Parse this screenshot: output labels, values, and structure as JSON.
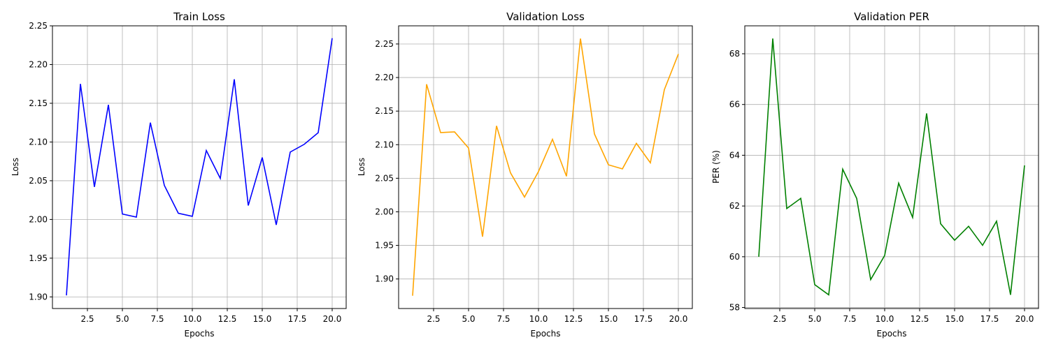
{
  "chart_data": [
    {
      "type": "line",
      "title": "Train Loss",
      "xlabel": "Epochs",
      "ylabel": "Loss",
      "xlim": [
        0,
        21
      ],
      "ylim": [
        1.885,
        2.25
      ],
      "xticks": [
        2.5,
        5.0,
        7.5,
        10.0,
        12.5,
        15.0,
        17.5,
        20.0
      ],
      "xtick_labels": [
        "2.5",
        "5.0",
        "7.5",
        "10.0",
        "12.5",
        "15.0",
        "17.5",
        "20.0"
      ],
      "yticks": [
        1.9,
        1.95,
        2.0,
        2.05,
        2.1,
        2.15,
        2.2,
        2.25
      ],
      "ytick_labels": [
        "1.90",
        "1.95",
        "2.00",
        "2.05",
        "2.10",
        "2.15",
        "2.20",
        "2.25"
      ],
      "grid": true,
      "color": "#0000ff",
      "x": [
        1,
        2,
        3,
        4,
        5,
        6,
        7,
        8,
        9,
        10,
        11,
        12,
        13,
        14,
        15,
        16,
        17,
        18,
        19,
        20
      ],
      "values": [
        1.902,
        2.175,
        2.042,
        2.148,
        2.007,
        2.003,
        2.125,
        2.044,
        2.008,
        2.004,
        2.089,
        2.053,
        2.181,
        2.018,
        2.08,
        1.993,
        2.087,
        2.097,
        2.112,
        2.234
      ]
    },
    {
      "type": "line",
      "title": "Validation Loss",
      "xlabel": "Epochs",
      "ylabel": "Loss",
      "xlim": [
        0,
        21
      ],
      "ylim": [
        1.856,
        2.277
      ],
      "xticks": [
        2.5,
        5.0,
        7.5,
        10.0,
        12.5,
        15.0,
        17.5,
        20.0
      ],
      "xtick_labels": [
        "2.5",
        "5.0",
        "7.5",
        "10.0",
        "12.5",
        "15.0",
        "17.5",
        "20.0"
      ],
      "yticks": [
        1.9,
        1.95,
        2.0,
        2.05,
        2.1,
        2.15,
        2.2,
        2.25
      ],
      "ytick_labels": [
        "1.90",
        "1.95",
        "2.00",
        "2.05",
        "2.10",
        "2.15",
        "2.20",
        "2.25"
      ],
      "grid": true,
      "color": "#ffa500",
      "x": [
        1,
        2,
        3,
        4,
        5,
        6,
        7,
        8,
        9,
        10,
        11,
        12,
        13,
        14,
        15,
        16,
        17,
        18,
        19,
        20
      ],
      "values": [
        1.875,
        2.19,
        2.118,
        2.119,
        2.095,
        1.963,
        2.128,
        2.058,
        2.022,
        2.06,
        2.108,
        2.053,
        2.258,
        2.116,
        2.07,
        2.064,
        2.102,
        2.073,
        2.182,
        2.235
      ]
    },
    {
      "type": "line",
      "title": "Validation PER",
      "xlabel": "Epochs",
      "ylabel": "PER (%)",
      "xlim": [
        0,
        21
      ],
      "ylim": [
        57.96,
        69.1
      ],
      "xticks": [
        2.5,
        5.0,
        7.5,
        10.0,
        12.5,
        15.0,
        17.5,
        20.0
      ],
      "xtick_labels": [
        "2.5",
        "5.0",
        "7.5",
        "10.0",
        "12.5",
        "15.0",
        "17.5",
        "20.0"
      ],
      "yticks": [
        58,
        60,
        62,
        64,
        66,
        68
      ],
      "ytick_labels": [
        "58",
        "60",
        "62",
        "64",
        "66",
        "68"
      ],
      "grid": true,
      "color": "#008000",
      "x": [
        1,
        2,
        3,
        4,
        5,
        6,
        7,
        8,
        9,
        10,
        11,
        12,
        13,
        14,
        15,
        16,
        17,
        18,
        19,
        20
      ],
      "values": [
        60.0,
        68.6,
        61.9,
        62.3,
        58.9,
        58.5,
        63.45,
        62.3,
        59.1,
        60.05,
        62.9,
        61.55,
        65.65,
        61.3,
        60.65,
        61.2,
        60.45,
        61.4,
        58.5,
        63.6
      ]
    }
  ]
}
